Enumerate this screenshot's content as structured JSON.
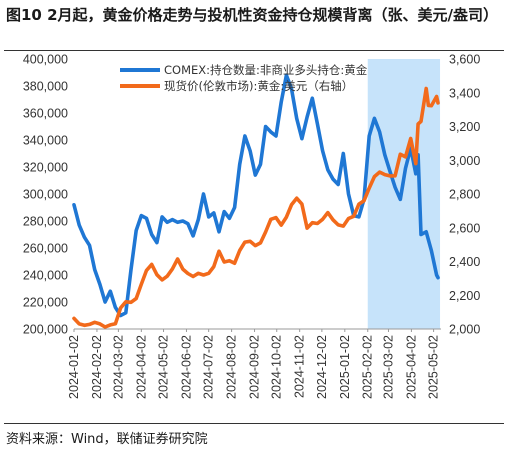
{
  "title": "图10 2月起，黄金价格走势与投机性资金持仓规模背离（张、美元/盎司）",
  "source": "资料来源：Wind，联储证券研究院",
  "colors": {
    "blue": "#1f77d4",
    "orange": "#f26a1b",
    "highlight": "#c6e3fa"
  },
  "chart_data": {
    "type": "line",
    "x_ticks": [
      "2024-01-02",
      "2024-02-02",
      "2024-03-02",
      "2024-04-02",
      "2024-05-02",
      "2024-06-02",
      "2024-07-02",
      "2024-08-02",
      "2024-09-02",
      "2024-10-02",
      "2024-11-02",
      "2024-12-02",
      "2025-01-02",
      "2025-02-02",
      "2025-03-02",
      "2025-04-02",
      "2025-05-02"
    ],
    "y_left": {
      "ticks": [
        "200,000",
        "220,000",
        "240,000",
        "260,000",
        "280,000",
        "300,000",
        "320,000",
        "340,000",
        "360,000",
        "380,000",
        "400,000"
      ],
      "min": 200000,
      "max": 400000
    },
    "y_right": {
      "ticks": [
        "2,000",
        "2,200",
        "2,400",
        "2,600",
        "2,800",
        "3,000",
        "3,200",
        "3,400",
        "3,600"
      ],
      "min": 2000,
      "max": 3600
    },
    "highlight_range": [
      "2025-02-02",
      "2025-05-08"
    ],
    "series": [
      {
        "name": "COMEX:持仓数量:非商业多头持仓:黄金",
        "axis": "left",
        "color": "#1f77d4",
        "points": [
          [
            "2024-01-02",
            292000
          ],
          [
            "2024-01-09",
            277000
          ],
          [
            "2024-01-16",
            268000
          ],
          [
            "2024-01-23",
            262000
          ],
          [
            "2024-01-30",
            244000
          ],
          [
            "2024-02-06",
            233000
          ],
          [
            "2024-02-13",
            220000
          ],
          [
            "2024-02-20",
            228000
          ],
          [
            "2024-02-27",
            216000
          ],
          [
            "2024-03-05",
            210000
          ],
          [
            "2024-03-12",
            212000
          ],
          [
            "2024-03-19",
            244000
          ],
          [
            "2024-03-26",
            273000
          ],
          [
            "2024-04-02",
            284000
          ],
          [
            "2024-04-09",
            282000
          ],
          [
            "2024-04-16",
            270000
          ],
          [
            "2024-04-23",
            264000
          ],
          [
            "2024-04-30",
            283000
          ],
          [
            "2024-05-07",
            279000
          ],
          [
            "2024-05-14",
            281000
          ],
          [
            "2024-05-21",
            279000
          ],
          [
            "2024-05-28",
            280000
          ],
          [
            "2024-06-04",
            278000
          ],
          [
            "2024-06-11",
            269000
          ],
          [
            "2024-06-18",
            281000
          ],
          [
            "2024-06-25",
            300000
          ],
          [
            "2024-07-02",
            283000
          ],
          [
            "2024-07-09",
            286000
          ],
          [
            "2024-07-16",
            272000
          ],
          [
            "2024-07-23",
            287000
          ],
          [
            "2024-07-30",
            282000
          ],
          [
            "2024-08-06",
            290000
          ],
          [
            "2024-08-13",
            322000
          ],
          [
            "2024-08-20",
            343000
          ],
          [
            "2024-08-27",
            332000
          ],
          [
            "2024-09-03",
            314000
          ],
          [
            "2024-09-10",
            322000
          ],
          [
            "2024-09-17",
            350000
          ],
          [
            "2024-09-24",
            346000
          ],
          [
            "2024-10-01",
            343000
          ],
          [
            "2024-10-08",
            368000
          ],
          [
            "2024-10-15",
            388000
          ],
          [
            "2024-10-22",
            378000
          ],
          [
            "2024-10-29",
            356000
          ],
          [
            "2024-11-05",
            341000
          ],
          [
            "2024-11-12",
            357000
          ],
          [
            "2024-11-19",
            371000
          ],
          [
            "2024-11-26",
            352000
          ],
          [
            "2024-12-03",
            332000
          ],
          [
            "2024-12-10",
            318000
          ],
          [
            "2024-12-17",
            311000
          ],
          [
            "2024-12-24",
            307000
          ],
          [
            "2024-12-31",
            330000
          ],
          [
            "2025-01-07",
            300000
          ],
          [
            "2025-01-14",
            284000
          ],
          [
            "2025-01-21",
            283000
          ],
          [
            "2025-01-28",
            296000
          ],
          [
            "2025-02-04",
            343000
          ],
          [
            "2025-02-11",
            356000
          ],
          [
            "2025-02-18",
            346000
          ],
          [
            "2025-02-25",
            329000
          ],
          [
            "2025-03-04",
            317000
          ],
          [
            "2025-03-11",
            305000
          ],
          [
            "2025-03-18",
            296000
          ],
          [
            "2025-03-25",
            319000
          ],
          [
            "2025-04-01",
            334000
          ],
          [
            "2025-04-08",
            315000
          ],
          [
            "2025-04-11",
            329000
          ],
          [
            "2025-04-15",
            270000
          ],
          [
            "2025-04-22",
            272000
          ],
          [
            "2025-04-29",
            258000
          ],
          [
            "2025-05-06",
            240000
          ],
          [
            "2025-05-08",
            238000
          ]
        ]
      },
      {
        "name": "现货价(伦敦市场):黄金:美元（右轴）",
        "axis": "right",
        "color": "#f26a1b",
        "points": [
          [
            "2024-01-02",
            2063
          ],
          [
            "2024-01-09",
            2030
          ],
          [
            "2024-01-16",
            2022
          ],
          [
            "2024-01-23",
            2027
          ],
          [
            "2024-01-30",
            2040
          ],
          [
            "2024-02-06",
            2030
          ],
          [
            "2024-02-13",
            2012
          ],
          [
            "2024-02-20",
            2024
          ],
          [
            "2024-02-27",
            2031
          ],
          [
            "2024-03-05",
            2125
          ],
          [
            "2024-03-12",
            2161
          ],
          [
            "2024-03-19",
            2158
          ],
          [
            "2024-03-26",
            2181
          ],
          [
            "2024-04-02",
            2265
          ],
          [
            "2024-04-09",
            2347
          ],
          [
            "2024-04-16",
            2383
          ],
          [
            "2024-04-23",
            2322
          ],
          [
            "2024-04-30",
            2291
          ],
          [
            "2024-05-07",
            2313
          ],
          [
            "2024-05-14",
            2356
          ],
          [
            "2024-05-21",
            2415
          ],
          [
            "2024-05-28",
            2355
          ],
          [
            "2024-06-04",
            2329
          ],
          [
            "2024-06-11",
            2311
          ],
          [
            "2024-06-18",
            2330
          ],
          [
            "2024-06-25",
            2320
          ],
          [
            "2024-07-02",
            2330
          ],
          [
            "2024-07-09",
            2370
          ],
          [
            "2024-07-16",
            2461
          ],
          [
            "2024-07-23",
            2397
          ],
          [
            "2024-07-30",
            2405
          ],
          [
            "2024-08-06",
            2390
          ],
          [
            "2024-08-13",
            2465
          ],
          [
            "2024-08-20",
            2515
          ],
          [
            "2024-08-27",
            2520
          ],
          [
            "2024-09-03",
            2494
          ],
          [
            "2024-09-10",
            2510
          ],
          [
            "2024-09-17",
            2575
          ],
          [
            "2024-09-24",
            2650
          ],
          [
            "2024-10-01",
            2660
          ],
          [
            "2024-10-08",
            2616
          ],
          [
            "2024-10-15",
            2663
          ],
          [
            "2024-10-22",
            2736
          ],
          [
            "2024-10-29",
            2775
          ],
          [
            "2024-11-05",
            2740
          ],
          [
            "2024-11-12",
            2598
          ],
          [
            "2024-11-19",
            2630
          ],
          [
            "2024-11-26",
            2625
          ],
          [
            "2024-12-03",
            2650
          ],
          [
            "2024-12-10",
            2690
          ],
          [
            "2024-12-17",
            2647
          ],
          [
            "2024-12-24",
            2617
          ],
          [
            "2024-12-31",
            2610
          ],
          [
            "2025-01-07",
            2655
          ],
          [
            "2025-01-14",
            2668
          ],
          [
            "2025-01-21",
            2740
          ],
          [
            "2025-01-28",
            2760
          ],
          [
            "2025-02-04",
            2835
          ],
          [
            "2025-02-11",
            2903
          ],
          [
            "2025-02-18",
            2930
          ],
          [
            "2025-02-25",
            2915
          ],
          [
            "2025-03-04",
            2907
          ],
          [
            "2025-03-11",
            2908
          ],
          [
            "2025-03-18",
            3036
          ],
          [
            "2025-03-25",
            3020
          ],
          [
            "2025-04-01",
            3129
          ],
          [
            "2025-04-08",
            2980
          ],
          [
            "2025-04-11",
            3215
          ],
          [
            "2025-04-15",
            3230
          ],
          [
            "2025-04-22",
            3425
          ],
          [
            "2025-04-25",
            3325
          ],
          [
            "2025-04-29",
            3323
          ],
          [
            "2025-05-06",
            3378
          ],
          [
            "2025-05-08",
            3340
          ]
        ]
      }
    ]
  }
}
